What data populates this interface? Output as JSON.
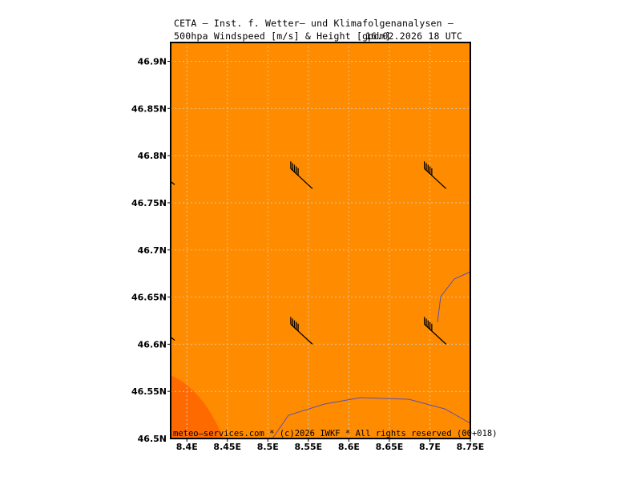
{
  "header": {
    "line1": "CETA – Inst. f. Wetter– und Klimafolgenanalysen –",
    "line2": "500hpa Windspeed [m/s] & Height [gpdm]",
    "date": "16.02.2026 18 UTC"
  },
  "footer": {
    "text": "meteo–services.com * (c)2026 IWKF * All rights reserved (00+018)"
  },
  "map": {
    "lon_range": [
      8.38,
      8.75
    ],
    "lat_range": [
      46.5,
      46.92
    ],
    "lon_ticks": [
      {
        "value": 8.4,
        "label": "8.4E"
      },
      {
        "value": 8.45,
        "label": "8.45E"
      },
      {
        "value": 8.5,
        "label": "8.5E"
      },
      {
        "value": 8.55,
        "label": "8.55E"
      },
      {
        "value": 8.6,
        "label": "8.6E"
      },
      {
        "value": 8.65,
        "label": "8.65E"
      },
      {
        "value": 8.7,
        "label": "8.7E"
      },
      {
        "value": 8.75,
        "label": "8.75E"
      }
    ],
    "lat_ticks": [
      {
        "value": 46.9,
        "label": "46.9N"
      },
      {
        "value": 46.85,
        "label": "46.85N"
      },
      {
        "value": 46.8,
        "label": "46.8N"
      },
      {
        "value": 46.75,
        "label": "46.75N"
      },
      {
        "value": 46.7,
        "label": "46.7N"
      },
      {
        "value": 46.65,
        "label": "46.65N"
      },
      {
        "value": 46.6,
        "label": "46.6N"
      },
      {
        "value": 46.55,
        "label": "46.55N"
      }
    ],
    "bottom_left_lat_label": "46.5N",
    "colors": {
      "fill_main": "#ff8c00",
      "fill_high": "#ff6a00",
      "border_line": "#5a4fb0",
      "grid": "#c8c8c8",
      "frame": "#000000",
      "barb": "#000000"
    },
    "wind_barbs": [
      {
        "lon": 8.555,
        "lat": 46.765
      },
      {
        "lon": 8.72,
        "lat": 46.765
      },
      {
        "lon": 8.555,
        "lat": 46.6
      },
      {
        "lon": 8.72,
        "lat": 46.6
      }
    ],
    "edge_barbs": [
      {
        "lon": 8.38,
        "lat": 46.77
      },
      {
        "lon": 8.38,
        "lat": 46.605
      }
    ]
  }
}
